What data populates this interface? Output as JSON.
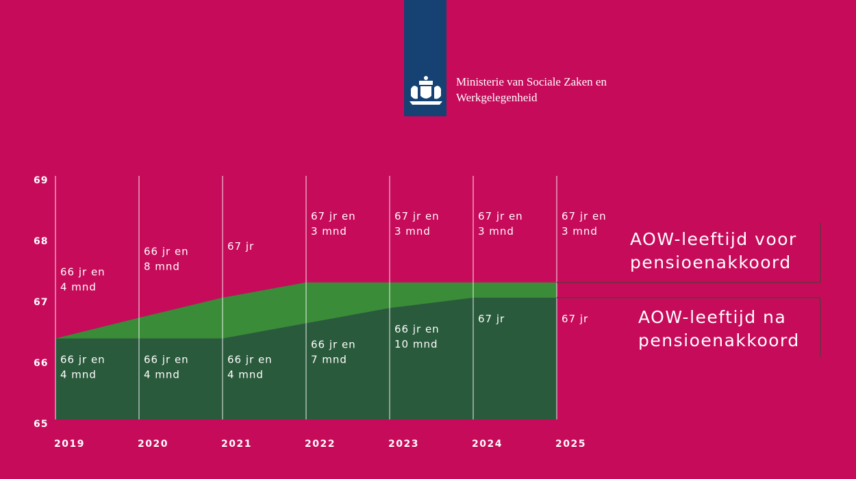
{
  "header": {
    "ministry": "Ministerie van Sociale Zaken en Werkgelegenheid"
  },
  "chart_data": {
    "type": "area",
    "x": [
      2019,
      2020,
      2021,
      2022,
      2023,
      2024,
      2025
    ],
    "xlim": [
      2019,
      2025
    ],
    "xticks": [
      2019,
      2020,
      2021,
      2022,
      2023,
      2024,
      2025
    ],
    "ylim": [
      65,
      69
    ],
    "yticks": [
      65,
      66,
      67,
      68,
      69
    ],
    "grid": true,
    "series": [
      {
        "name": "AOW-leeftijd voor pensioenakkoord",
        "color": "#3a8c38",
        "values": [
          66.33,
          66.67,
          67,
          67.25,
          67.25,
          67.25,
          67.25
        ],
        "value_labels": [
          [
            "66 jr en",
            "4 mnd"
          ],
          [
            "66 jr en",
            "8 mnd"
          ],
          [
            "67 jr"
          ],
          [
            "67 jr en",
            "3 mnd"
          ],
          [
            "67 jr en",
            "3 mnd"
          ],
          [
            "67 jr en",
            "3 mnd"
          ],
          [
            "67 jr en",
            "3 mnd"
          ]
        ]
      },
      {
        "name": "AOW-leeftijd na pensioenakkoord",
        "color": "#2a5a3c",
        "values": [
          66.33,
          66.33,
          66.33,
          66.58,
          66.83,
          67,
          67
        ],
        "value_labels": [
          [
            "66 jr en",
            "4 mnd"
          ],
          [
            "66 jr en",
            "4 mnd"
          ],
          [
            "66 jr en",
            "4 mnd"
          ],
          [
            "66 jr en",
            "7 mnd"
          ],
          [
            "66 jr en",
            "10 mnd"
          ],
          [
            "67 jr"
          ],
          [
            "67 jr"
          ]
        ]
      }
    ]
  }
}
